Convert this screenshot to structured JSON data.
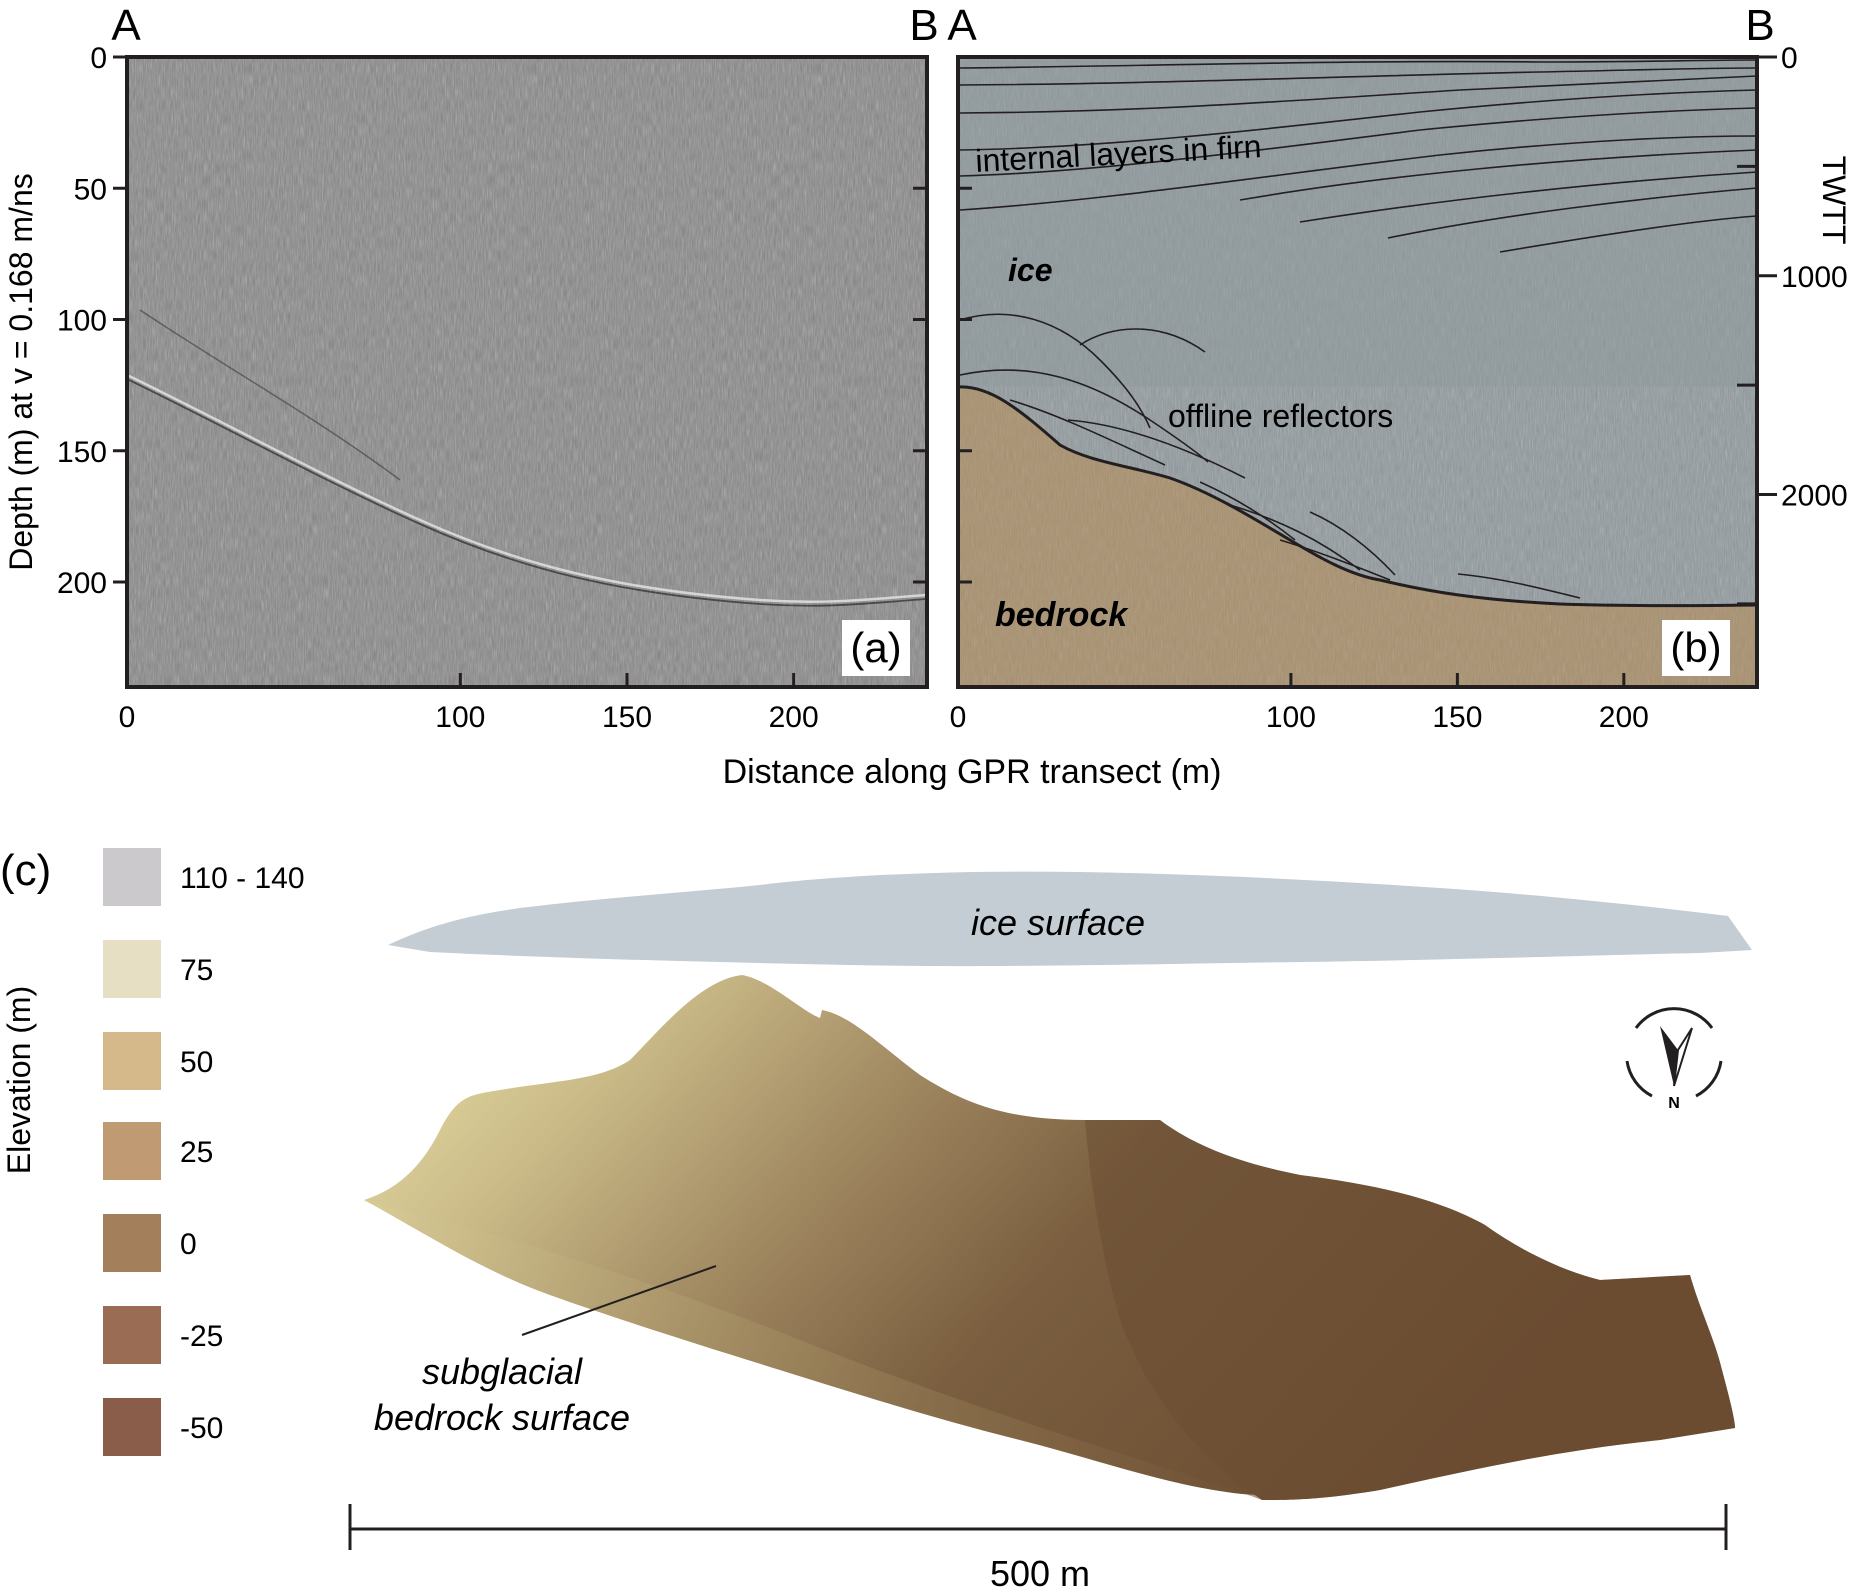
{
  "panel_a": {
    "label": "(a)",
    "end_labels": {
      "start": "A",
      "end": "B"
    },
    "ylabel": "Depth (m) at v = 0.168 m/ns",
    "depth_ticks": [
      0,
      50,
      100,
      150,
      200
    ],
    "distance_ticks": [
      0,
      100,
      150,
      200
    ]
  },
  "panel_b": {
    "label": "(b)",
    "end_labels": {
      "start": "A",
      "end": "B"
    },
    "twtt_label": "TWTT",
    "twtt_ticks": [
      0,
      1000,
      2000
    ],
    "distance_ticks": [
      0,
      100,
      150,
      200
    ],
    "annotations": {
      "firn": "internal layers in firn",
      "ice": "ice",
      "reflectors": "offline reflectors",
      "bedrock": "bedrock"
    },
    "colors": {
      "ice": "#8e989c",
      "bedrock": "#a8906e"
    }
  },
  "xlabel": "Distance along GPR transect (m)",
  "panel_c": {
    "label": "(c)",
    "ylabel": "Elevation (m)",
    "legend": [
      {
        "label": "110 - 140",
        "color": "#cbc9cb"
      },
      {
        "label": "75",
        "color": "#e7dfc3"
      },
      {
        "label": "50",
        "color": "#d6b98b"
      },
      {
        "label": "25",
        "color": "#c09a72"
      },
      {
        "label": "0",
        "color": "#a47f5c"
      },
      {
        "label": "-25",
        "color": "#9a6c53"
      },
      {
        "label": "-50",
        "color": "#8a5c4a"
      }
    ],
    "ice_surface_label": "ice surface",
    "bedrock_label_line1": "subglacial",
    "bedrock_label_line2": "bedrock surface",
    "scale_label": "500 m",
    "north_label": "N"
  }
}
